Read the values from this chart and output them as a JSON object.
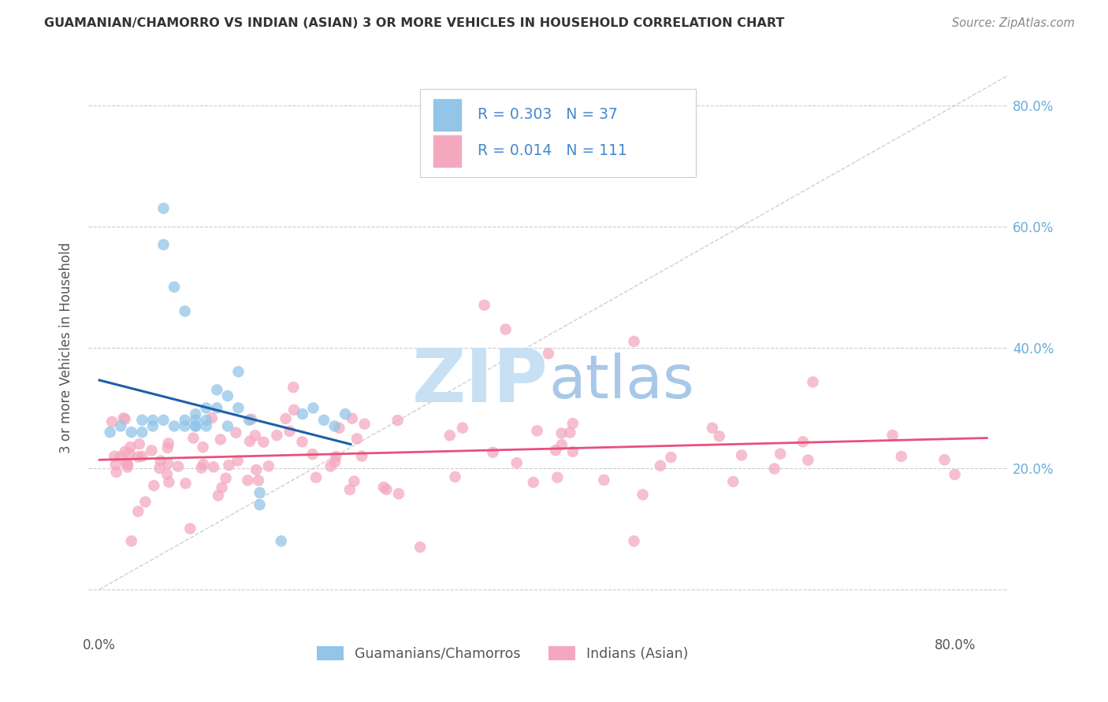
{
  "title": "GUAMANIAN/CHAMORRO VS INDIAN (ASIAN) 3 OR MORE VEHICLES IN HOUSEHOLD CORRELATION CHART",
  "source": "Source: ZipAtlas.com",
  "ylabel": "3 or more Vehicles in Household",
  "xlim": [
    -0.01,
    0.85
  ],
  "ylim": [
    -0.07,
    0.87
  ],
  "blue_R": 0.303,
  "blue_N": 37,
  "pink_R": 0.014,
  "pink_N": 111,
  "blue_color": "#92C5E8",
  "pink_color": "#F4A8C0",
  "blue_line_color": "#1E5FA8",
  "pink_line_color": "#E8507A",
  "diag_color": "#BBBBBB",
  "title_color": "#333333",
  "right_label_color": "#6BAED6",
  "background_color": "#FFFFFF",
  "legend_text_color": "#4488CC",
  "watermark_zip_color": "#C8E0F4",
  "watermark_atlas_color": "#A8C8E8"
}
